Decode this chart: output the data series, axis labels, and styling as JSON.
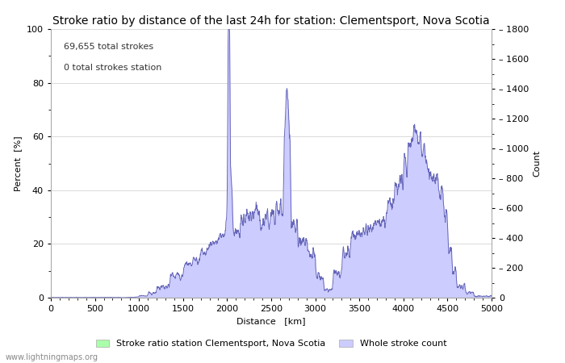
{
  "title": "Stroke ratio by distance of the last 24h for station: Clementsport, Nova Scotia",
  "xlabel": "Distance   [km]",
  "ylabel_left": "Percent  [%]",
  "ylabel_right": "Count",
  "annotation_line1": "69,655 total strokes",
  "annotation_line2": "0 total strokes station",
  "xlim": [
    0,
    5000
  ],
  "ylim_left": [
    0,
    100
  ],
  "ylim_right": [
    0,
    1800
  ],
  "xticks": [
    0,
    500,
    1000,
    1500,
    2000,
    2500,
    3000,
    3500,
    4000,
    4500,
    5000
  ],
  "yticks_left": [
    0,
    20,
    40,
    60,
    80,
    100
  ],
  "yticks_right": [
    0,
    200,
    400,
    600,
    800,
    1000,
    1200,
    1400,
    1600,
    1800
  ],
  "fill_color_stroke_ratio": "#aaffaa",
  "fill_color_whole": "#ccccff",
  "line_color": "#6666bb",
  "background_color": "#ffffff",
  "watermark": "www.lightningmaps.org",
  "legend_label_1": "Stroke ratio station Clementsport, Nova Scotia",
  "legend_label_2": "Whole stroke count",
  "title_fontsize": 10,
  "label_fontsize": 8,
  "tick_fontsize": 8,
  "annotation_fontsize": 8
}
